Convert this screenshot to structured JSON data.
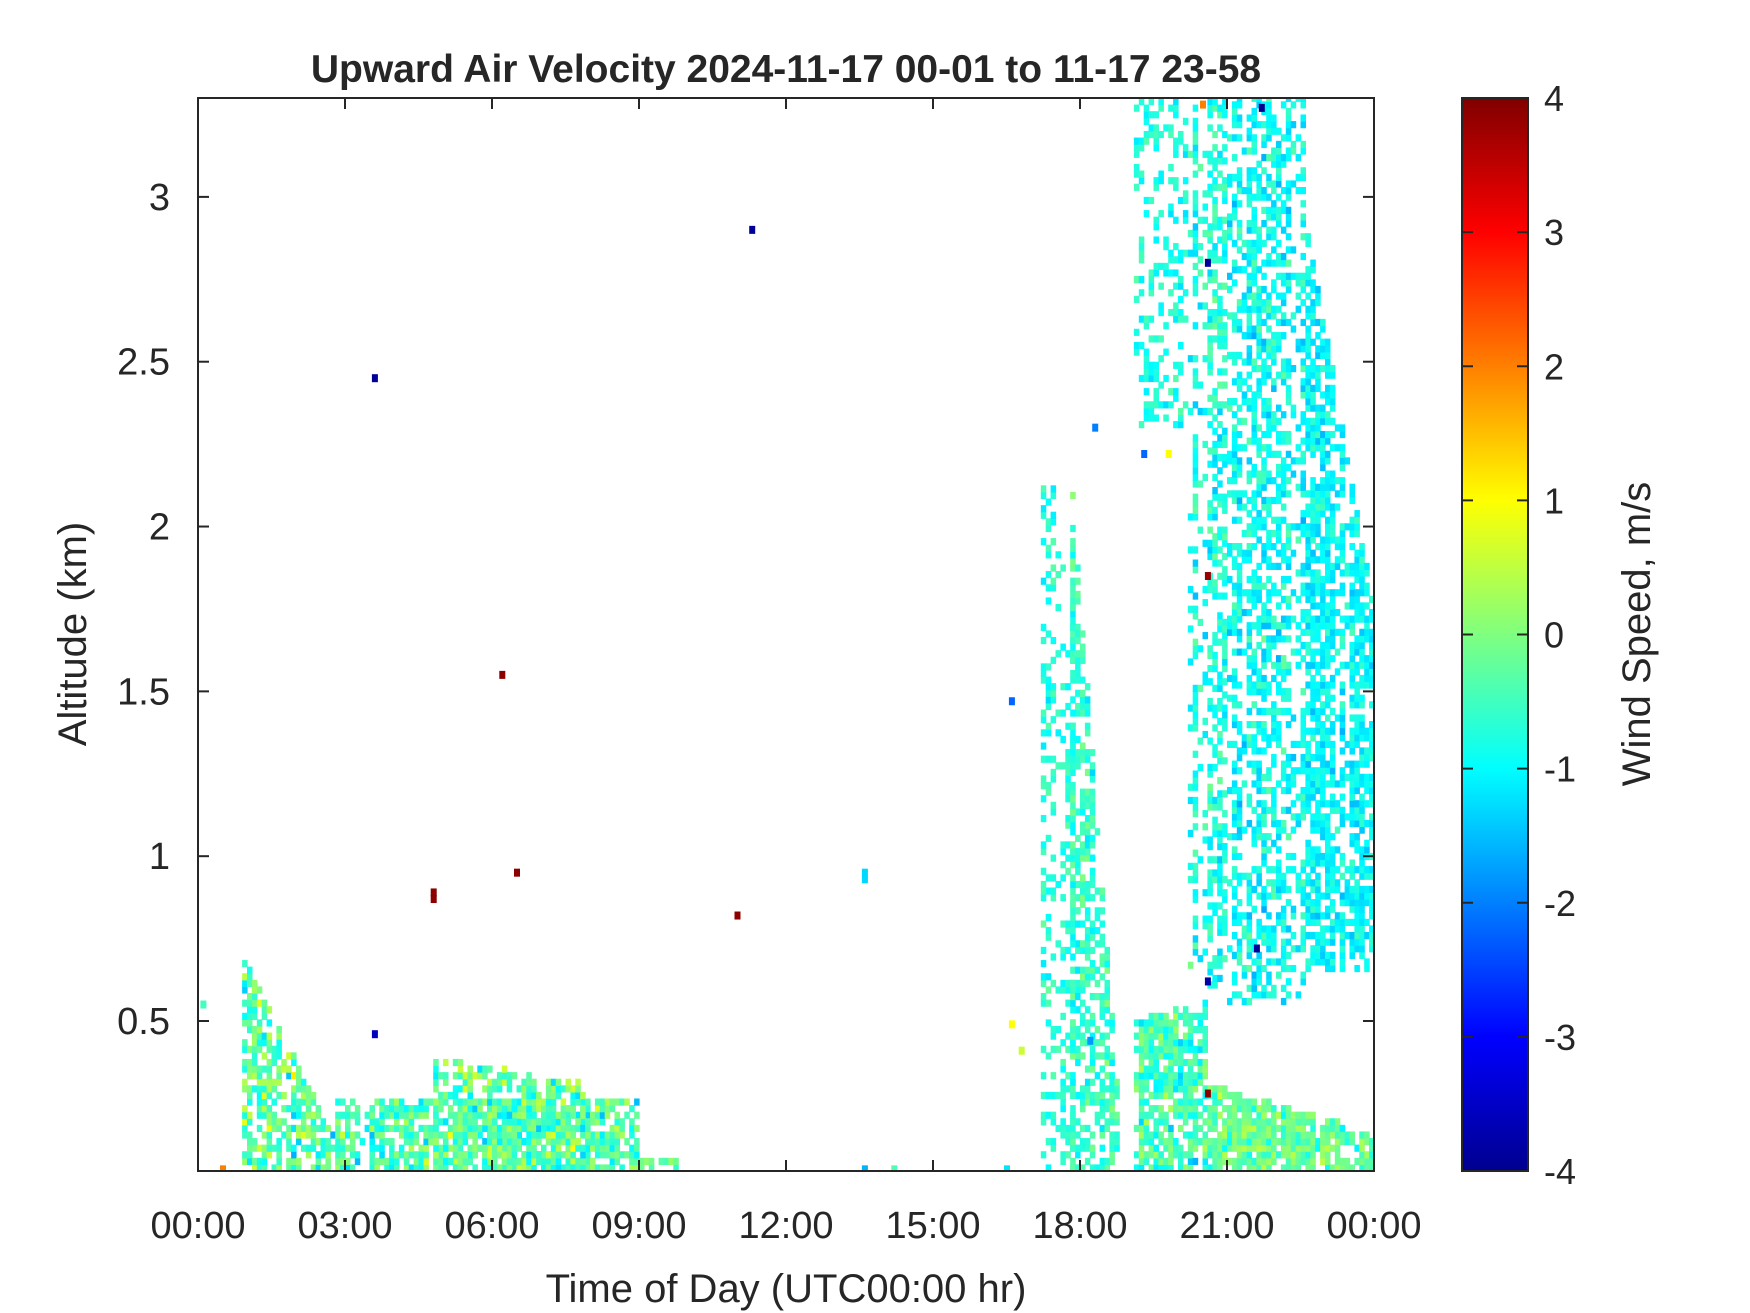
{
  "chart_data": {
    "type": "heatmap",
    "title": "Upward Air Velocity 2024-11-17 00-01 to 11-17 23-58",
    "xlabel": "Time of Day (UTC00:00 hr)",
    "ylabel": "Altitude (km)",
    "xlim_hours": [
      0,
      24
    ],
    "ylim_km": [
      0.045,
      3.3
    ],
    "x_ticks": [
      {
        "value": 0,
        "label": "00:00"
      },
      {
        "value": 3,
        "label": "03:00"
      },
      {
        "value": 6,
        "label": "06:00"
      },
      {
        "value": 9,
        "label": "09:00"
      },
      {
        "value": 12,
        "label": "12:00"
      },
      {
        "value": 15,
        "label": "15:00"
      },
      {
        "value": 18,
        "label": "18:00"
      },
      {
        "value": 21,
        "label": "21:00"
      },
      {
        "value": 24,
        "label": "00:00"
      }
    ],
    "y_ticks": [
      {
        "value": 0.5,
        "label": "0.5"
      },
      {
        "value": 1,
        "label": "1"
      },
      {
        "value": 1.5,
        "label": "1.5"
      },
      {
        "value": 2,
        "label": "2"
      },
      {
        "value": 2.5,
        "label": "2.5"
      },
      {
        "value": 3,
        "label": "3"
      }
    ],
    "colorbar": {
      "label": "Wind Speed, m/s",
      "range": [
        -4,
        4
      ],
      "colormap": "jet",
      "ticks": [
        {
          "value": 4,
          "label": "4"
        },
        {
          "value": 3,
          "label": "3"
        },
        {
          "value": 2,
          "label": "2"
        },
        {
          "value": 1,
          "label": "1"
        },
        {
          "value": 0,
          "label": "0"
        },
        {
          "value": -1,
          "label": "-1"
        },
        {
          "value": -2,
          "label": "-2"
        },
        {
          "value": -3,
          "label": "-3"
        },
        {
          "value": -4,
          "label": "-4"
        }
      ]
    },
    "grid": false,
    "regions": [
      {
        "x_start": 0.9,
        "x_end": 2.8,
        "alt_top_start": 0.68,
        "alt_top_end": 0.12,
        "mean": -0.3,
        "spread": 0.9,
        "fill": 0.7
      },
      {
        "x_start": 2.8,
        "x_end": 9.0,
        "alt_top_start": 0.25,
        "alt_top_end": 0.25,
        "mean": -0.4,
        "spread": 0.8,
        "fill": 0.75
      },
      {
        "x_start": 4.8,
        "x_end": 8.0,
        "alt_top_start": 0.38,
        "alt_top_end": 0.3,
        "mean": -0.3,
        "spread": 0.8,
        "fill": 0.7
      },
      {
        "x_start": 9.0,
        "x_end": 9.8,
        "alt_top_start": 0.08,
        "alt_top_end": 0.08,
        "mean": -0.2,
        "spread": 0.5,
        "fill": 0.6
      },
      {
        "x_start": 17.2,
        "x_end": 18.0,
        "alt_top_start": 2.3,
        "alt_top_end": 1.6,
        "mean": -0.7,
        "spread": 0.4,
        "fill": 0.35
      },
      {
        "x_start": 17.8,
        "x_end": 18.8,
        "alt_top_start": 2.1,
        "alt_top_end": 0.12,
        "mean": -0.6,
        "spread": 0.5,
        "fill": 0.6
      },
      {
        "x_start": 19.1,
        "x_end": 20.6,
        "alt_top_start": 0.5,
        "alt_top_end": 0.55,
        "mean": -0.5,
        "spread": 0.7,
        "fill": 0.75
      },
      {
        "x_start": 20.6,
        "x_end": 24.0,
        "alt_top_start": 0.3,
        "alt_top_end": 0.15,
        "mean": -0.2,
        "spread": 0.6,
        "fill": 0.85
      },
      {
        "x_start": 19.1,
        "x_end": 20.2,
        "alt_top_start": 3.3,
        "alt_top_end": 3.3,
        "alt_bottom": 2.3,
        "mean": -0.8,
        "spread": 0.4,
        "fill": 0.3
      },
      {
        "x_start": 20.2,
        "x_end": 21.0,
        "alt_top_start": 3.3,
        "alt_top_end": 3.3,
        "alt_bottom": 0.6,
        "mean": -0.8,
        "spread": 0.5,
        "fill": 0.55
      },
      {
        "x_start": 21.0,
        "x_end": 22.6,
        "alt_top_start": 3.3,
        "alt_top_end": 3.3,
        "alt_bottom": 0.55,
        "mean": -0.9,
        "spread": 0.5,
        "fill": 0.55
      },
      {
        "x_start": 22.6,
        "x_end": 24.0,
        "alt_top_start": 2.9,
        "alt_top_end": 1.7,
        "alt_bottom": 0.65,
        "mean": -1.0,
        "spread": 0.4,
        "fill": 0.7
      }
    ],
    "points": [
      {
        "x": 3.6,
        "alt": 2.45,
        "v": -3.8
      },
      {
        "x": 11.3,
        "alt": 2.9,
        "v": -3.8
      },
      {
        "x": 6.2,
        "alt": 1.55,
        "v": 3.9
      },
      {
        "x": 4.8,
        "alt": 0.89,
        "v": 3.9
      },
      {
        "x": 4.8,
        "alt": 0.87,
        "v": 3.9
      },
      {
        "x": 6.5,
        "alt": 0.95,
        "v": 3.9
      },
      {
        "x": 11.0,
        "alt": 0.82,
        "v": 3.9
      },
      {
        "x": 3.6,
        "alt": 0.46,
        "v": -3.5
      },
      {
        "x": 16.6,
        "alt": 1.47,
        "v": -2.2
      },
      {
        "x": 13.6,
        "alt": 0.95,
        "v": -1.3
      },
      {
        "x": 13.6,
        "alt": 0.93,
        "v": -1.3
      },
      {
        "x": 18.3,
        "alt": 2.3,
        "v": -2.0
      },
      {
        "x": 16.6,
        "alt": 0.49,
        "v": 1.0
      },
      {
        "x": 16.8,
        "alt": 0.41,
        "v": 0.6
      },
      {
        "x": 18.2,
        "alt": 0.44,
        "v": -1.8
      },
      {
        "x": 0.5,
        "alt": 0.05,
        "v": 2.0
      },
      {
        "x": 20.5,
        "alt": 3.28,
        "v": 2.0
      },
      {
        "x": 21.7,
        "alt": 3.27,
        "v": -3.9
      },
      {
        "x": 20.6,
        "alt": 0.28,
        "v": 3.9
      },
      {
        "x": 20.6,
        "alt": 1.85,
        "v": 3.8
      },
      {
        "x": 20.6,
        "alt": 2.8,
        "v": -3.8
      },
      {
        "x": 20.6,
        "alt": 0.62,
        "v": -3.7
      },
      {
        "x": 21.6,
        "alt": 0.72,
        "v": -3.8
      },
      {
        "x": 19.3,
        "alt": 2.22,
        "v": -2.2
      },
      {
        "x": 19.8,
        "alt": 2.22,
        "v": 1.0
      },
      {
        "x": 0.1,
        "alt": 0.55,
        "v": -0.5
      },
      {
        "x": 14.2,
        "alt": 0.05,
        "v": -0.4
      },
      {
        "x": 13.6,
        "alt": 0.05,
        "v": -1.6
      },
      {
        "x": 16.5,
        "alt": 0.05,
        "v": -1.2
      }
    ]
  }
}
